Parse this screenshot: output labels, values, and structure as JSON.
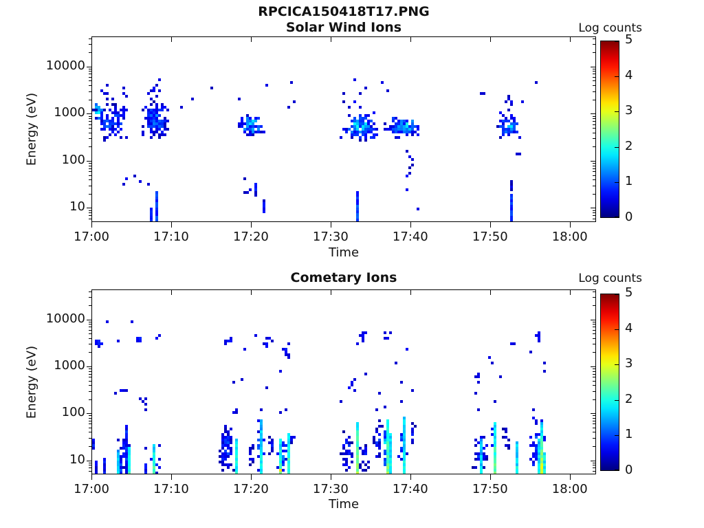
{
  "title": "RPCICA150418T17.PNG",
  "colorbar": {
    "label": "Log counts",
    "min": 0,
    "max": 5,
    "ticks": [
      0,
      1,
      2,
      3,
      4,
      5
    ],
    "colormap": "jet"
  },
  "chart_data": [
    {
      "type": "heatmap",
      "title": "Solar Wind Ions",
      "xlabel": "Time",
      "ylabel": "Energy (eV)",
      "colormap": "jet",
      "color_scale": {
        "label": "Log counts",
        "range": [
          0,
          5
        ],
        "ticks": [
          0,
          1,
          2,
          3,
          4,
          5
        ]
      },
      "x_tick_minutes": [
        0,
        10,
        20,
        30,
        40,
        50,
        60
      ],
      "x_tick_labels": [
        "17:00",
        "17:10",
        "17:20",
        "17:30",
        "17:40",
        "17:50",
        "18:00"
      ],
      "y_tick_log": [
        1,
        2,
        3,
        4
      ],
      "y_tick_labels": [
        "10",
        "100",
        "1000",
        "10000"
      ],
      "x_range_minutes": [
        0,
        63.3
      ],
      "y_log_range": [
        0.7,
        4.64
      ],
      "grid": false,
      "seed": 7,
      "blobs_format": "[t_start_min_after_1700, t_end, log10E_min, log10E_max, n_bins, logcount_min, logcount_max]",
      "blobs": [
        [
          0.0,
          4.6,
          2.45,
          3.28,
          100,
          0,
          1.5
        ],
        [
          0.0,
          1.1,
          2.95,
          3.22,
          16,
          1.0,
          2.0
        ],
        [
          0.3,
          4.5,
          3.3,
          3.72,
          6,
          0.2,
          0.8
        ],
        [
          6.0,
          9.6,
          2.5,
          3.3,
          120,
          0,
          1.7
        ],
        [
          6.2,
          9.2,
          3.3,
          3.78,
          10,
          0.2,
          0.8
        ],
        [
          2.3,
          7.2,
          1.5,
          1.75,
          4,
          0.2,
          0.7
        ],
        [
          18.0,
          21.6,
          2.55,
          3.05,
          70,
          0,
          2.2
        ],
        [
          18.4,
          21.2,
          1.25,
          1.7,
          4,
          0.2,
          0.7
        ],
        [
          31.0,
          35.8,
          2.45,
          3.1,
          100,
          0,
          2.2
        ],
        [
          31.2,
          34.2,
          3.1,
          3.5,
          7,
          0.2,
          0.7
        ],
        [
          36.5,
          41.2,
          2.55,
          3.0,
          90,
          0,
          2.3
        ],
        [
          37.5,
          40.6,
          1.9,
          2.35,
          6,
          0.2,
          0.7
        ],
        [
          38.8,
          39.6,
          1.25,
          1.95,
          5,
          0.3,
          1.0
        ],
        [
          50.5,
          53.8,
          2.5,
          3.1,
          55,
          0,
          2.0
        ],
        [
          51.5,
          54.0,
          3.1,
          3.45,
          6,
          0.2,
          0.7
        ]
      ],
      "columns_format": "[t_min, log10E_bottom, log10E_top, logcount_at_bottom, optional_logcount_at_top]",
      "columns": [
        [
          7.35,
          0.72,
          1.05,
          0.6
        ],
        [
          7.85,
          0.72,
          1.4,
          0.85
        ],
        [
          20.3,
          1.28,
          1.52,
          0.6
        ],
        [
          21.4,
          0.98,
          1.22,
          0.6
        ],
        [
          33.1,
          0.72,
          1.35,
          0.9
        ],
        [
          52.3,
          0.75,
          1.3,
          0.8
        ],
        [
          52.5,
          1.4,
          1.62,
          0.5
        ]
      ],
      "dots_format": "[t_min, log10E, logcount]",
      "dots": [
        [
          1.0,
          3.55,
          0.5
        ],
        [
          1.6,
          3.66,
          0.4
        ],
        [
          8.3,
          3.78,
          0.5
        ],
        [
          4.2,
          3.4,
          0.4
        ],
        [
          11.0,
          3.2,
          0.4
        ],
        [
          12.4,
          3.35,
          0.4
        ],
        [
          14.7,
          3.6,
          0.3
        ],
        [
          18.3,
          3.35,
          0.4
        ],
        [
          21.9,
          3.66,
          0.5
        ],
        [
          24.5,
          3.17,
          0.4
        ],
        [
          24.7,
          3.68,
          0.4
        ],
        [
          25.3,
          3.32,
          0.4
        ],
        [
          32.9,
          3.77,
          0.5
        ],
        [
          34.1,
          3.6,
          0.4
        ],
        [
          36.2,
          3.72,
          0.5
        ],
        [
          37.0,
          3.55,
          0.4
        ],
        [
          48.5,
          3.45,
          0.4
        ],
        [
          49.0,
          3.48,
          0.4
        ],
        [
          52.3,
          3.22,
          0.4
        ],
        [
          53.9,
          3.3,
          0.5
        ],
        [
          55.5,
          3.71,
          0.4
        ],
        [
          53.2,
          2.17,
          0.4
        ],
        [
          53.5,
          2.2,
          0.4
        ],
        [
          7.0,
          1.55,
          0.4
        ],
        [
          40.7,
          1.0,
          0.5
        ]
      ]
    },
    {
      "type": "heatmap",
      "title": "Cometary Ions",
      "xlabel": "Time",
      "ylabel": "Energy (eV)",
      "colormap": "jet",
      "color_scale": {
        "label": "Log counts",
        "range": [
          0,
          5
        ],
        "ticks": [
          0,
          1,
          2,
          3,
          4,
          5
        ]
      },
      "x_tick_minutes": [
        0,
        10,
        20,
        30,
        40,
        50,
        60
      ],
      "x_tick_labels": [
        "17:00",
        "17:10",
        "17:20",
        "17:30",
        "17:40",
        "17:50",
        "18:00"
      ],
      "y_tick_log": [
        1,
        2,
        3,
        4
      ],
      "y_tick_labels": [
        "10",
        "100",
        "1000",
        "10000"
      ],
      "x_range_minutes": [
        0,
        63.3
      ],
      "y_log_range": [
        0.7,
        4.64
      ],
      "grid": false,
      "seed": 13,
      "blobs_format": "[t_start_min_after_1700, t_end, log10E_min, log10E_max, n_bins, logcount_min, logcount_max]",
      "blobs": [
        [
          0.2,
          1.2,
          3.48,
          3.72,
          8,
          0.4,
          1.2
        ],
        [
          5.3,
          6.2,
          3.55,
          3.75,
          6,
          0.4,
          1.0
        ],
        [
          16.2,
          17.6,
          3.42,
          3.72,
          8,
          0.3,
          0.9
        ],
        [
          21.3,
          22.4,
          3.35,
          3.7,
          6,
          0.3,
          0.9
        ],
        [
          23.2,
          24.8,
          3.0,
          3.67,
          9,
          0.3,
          0.9
        ],
        [
          33.4,
          34.2,
          3.55,
          3.85,
          7,
          0.3,
          0.9
        ],
        [
          36.2,
          37.5,
          3.6,
          3.78,
          5,
          0.3,
          0.8
        ],
        [
          31.4,
          33.2,
          2.45,
          2.85,
          8,
          0.3,
          0.8
        ],
        [
          47.6,
          48.8,
          2.65,
          2.95,
          6,
          0.3,
          0.8
        ],
        [
          52.2,
          53.0,
          3.5,
          3.62,
          4,
          0.3,
          0.8
        ],
        [
          55.4,
          56.2,
          3.5,
          3.8,
          6,
          0.3,
          0.9
        ],
        [
          2.4,
          4.4,
          2.45,
          2.58,
          3,
          0.3,
          0.7
        ],
        [
          5.6,
          6.8,
          2.05,
          2.42,
          3,
          0.3,
          0.7
        ],
        [
          17.2,
          18.2,
          2.0,
          2.2,
          3,
          0.3,
          0.7
        ],
        [
          15.8,
          17.6,
          0.72,
          1.9,
          80,
          0,
          1.3
        ],
        [
          19.4,
          20.1,
          0.9,
          1.55,
          12,
          0,
          1.0
        ],
        [
          20.5,
          21.3,
          0.72,
          1.95,
          25,
          0.2,
          1.8
        ],
        [
          22.0,
          22.6,
          1.05,
          1.6,
          8,
          0,
          1.0
        ],
        [
          23.0,
          24.6,
          0.72,
          1.6,
          25,
          0.2,
          1.6
        ],
        [
          24.5,
          25.2,
          1.3,
          1.8,
          8,
          0,
          1.0
        ],
        [
          2.8,
          4.8,
          0.72,
          1.6,
          30,
          0,
          1.2
        ],
        [
          7.2,
          8.3,
          0.72,
          1.45,
          15,
          0.2,
          1.4
        ],
        [
          31.0,
          32.6,
          0.72,
          1.75,
          35,
          0,
          1.2
        ],
        [
          33.4,
          34.6,
          0.72,
          1.5,
          20,
          0,
          1.1
        ],
        [
          35.2,
          36.2,
          1.0,
          1.9,
          30,
          0,
          1.2
        ],
        [
          36.3,
          37.3,
          0.72,
          1.95,
          30,
          0.5,
          2.0
        ],
        [
          38.3,
          39.3,
          0.9,
          1.85,
          20,
          0.2,
          1.5
        ],
        [
          39.8,
          40.3,
          1.3,
          1.9,
          10,
          0,
          1.0
        ],
        [
          47.6,
          49.6,
          0.72,
          1.7,
          35,
          0,
          1.2
        ],
        [
          50.0,
          50.6,
          0.72,
          1.85,
          15,
          0.3,
          1.6
        ],
        [
          51.5,
          52.3,
          1.2,
          1.9,
          12,
          0,
          1.0
        ],
        [
          54.7,
          56.6,
          0.72,
          2.0,
          60,
          0.2,
          1.5
        ]
      ],
      "columns_format": "[t_min, log10E_bottom, log10E_top, logcount_at_bottom, optional_logcount_at_top]",
      "columns": [
        [
          0.15,
          1.22,
          1.45,
          0.6
        ],
        [
          0.2,
          0.75,
          1.0,
          0.5
        ],
        [
          1.35,
          0.75,
          1.05,
          0.6
        ],
        [
          3.05,
          0.72,
          1.25,
          1.8,
          1.4
        ],
        [
          3.6,
          0.72,
          1.0,
          0.8
        ],
        [
          4.1,
          0.72,
          1.75,
          0.7
        ],
        [
          4.5,
          0.72,
          1.3,
          2.2,
          1.6
        ],
        [
          6.5,
          0.72,
          0.92,
          0.6
        ],
        [
          7.5,
          0.72,
          1.35,
          2.4,
          1.6
        ],
        [
          17.95,
          0.72,
          1.45,
          2.0,
          1.7
        ],
        [
          20.9,
          0.72,
          1.9,
          1.9,
          1.5
        ],
        [
          23.35,
          0.72,
          1.5,
          2.2,
          1.8
        ],
        [
          24.35,
          0.72,
          1.6,
          2.3,
          1.7
        ],
        [
          33.15,
          0.72,
          1.8,
          2.6,
          1.9
        ],
        [
          36.75,
          0.72,
          1.9,
          2.5,
          1.8
        ],
        [
          37.1,
          0.72,
          1.6,
          1.8
        ],
        [
          39.0,
          0.72,
          1.95,
          1.9,
          1.6
        ],
        [
          48.5,
          0.72,
          1.5,
          1.8,
          1.4
        ],
        [
          50.3,
          0.72,
          1.85,
          2.5,
          1.7
        ],
        [
          53.0,
          0.72,
          1.4,
          1.9,
          1.6
        ],
        [
          55.9,
          0.72,
          1.5,
          2.0,
          1.6
        ],
        [
          56.25,
          0.72,
          1.85,
          3.2,
          1.6
        ],
        [
          56.55,
          0.72,
          1.2,
          1.8
        ]
      ],
      "dots_format": "[t_min, log10E, logcount]",
      "dots": [
        [
          1.8,
          4.0,
          0.5
        ],
        [
          5.0,
          4.02,
          0.5
        ],
        [
          3.2,
          3.57,
          0.5
        ],
        [
          7.9,
          3.62,
          0.6
        ],
        [
          8.2,
          3.72,
          0.5
        ],
        [
          19.1,
          3.4,
          0.5
        ],
        [
          20.4,
          3.72,
          0.5
        ],
        [
          23.6,
          2.93,
          0.5
        ],
        [
          33.2,
          3.5,
          0.5
        ],
        [
          34.3,
          2.9,
          0.4
        ],
        [
          38.0,
          3.1,
          0.4
        ],
        [
          39.4,
          3.4,
          0.6
        ],
        [
          38.6,
          2.7,
          0.4
        ],
        [
          40.1,
          2.52,
          0.4
        ],
        [
          36.0,
          2.5,
          0.4
        ],
        [
          49.6,
          3.25,
          0.5
        ],
        [
          49.9,
          3.1,
          0.4
        ],
        [
          50.9,
          2.8,
          0.4
        ],
        [
          54.8,
          3.35,
          0.4
        ],
        [
          56.5,
          3.1,
          0.4
        ],
        [
          56.7,
          2.97,
          0.4
        ],
        [
          48.1,
          2.5,
          0.4
        ],
        [
          17.5,
          2.72,
          0.4
        ],
        [
          18.8,
          2.78,
          0.4
        ],
        [
          21.8,
          2.6,
          0.4
        ],
        [
          21.0,
          2.1,
          0.4
        ],
        [
          23.3,
          2.05,
          0.4
        ],
        [
          24.2,
          2.1,
          0.4
        ],
        [
          31.0,
          2.3,
          0.4
        ],
        [
          35.6,
          2.1,
          0.4
        ],
        [
          36.5,
          2.18,
          0.4
        ],
        [
          38.7,
          2.3,
          0.4
        ],
        [
          48.3,
          2.1,
          0.4
        ],
        [
          50.4,
          2.28,
          0.4
        ],
        [
          55.2,
          2.12,
          0.4
        ],
        [
          23.4,
          0.82,
          3.3
        ],
        [
          2.6,
          2.5,
          0.4
        ],
        [
          4.0,
          2.52,
          0.4
        ],
        [
          6.2,
          2.3,
          0.4
        ],
        [
          6.6,
          2.15,
          0.4
        ],
        [
          6.5,
          1.3,
          0.4
        ]
      ]
    }
  ]
}
